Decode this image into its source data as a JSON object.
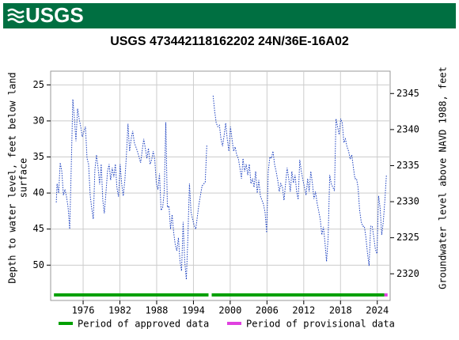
{
  "header": {
    "logo": "USGS"
  },
  "chart_data": {
    "type": "line",
    "title": "USGS 473442118162202 24N/36E-16A02",
    "ylabel": [
      "Depth to water level, feet below land",
      "surface"
    ],
    "y2label": "Groundwater level above NAVD 1988, feet",
    "xlim": [
      1970.7,
      2026.1
    ],
    "xticks": [
      1976,
      1982,
      1988,
      1994,
      2000,
      2006,
      2012,
      2018,
      2024
    ],
    "ylim": [
      23.1,
      54.9
    ],
    "yinverted": true,
    "yticks": [
      25,
      30,
      35,
      40,
      45,
      50
    ],
    "y2lim": [
      2348.1,
      2316.3
    ],
    "y2ticks": [
      2320,
      2325,
      2330,
      2335,
      2340,
      2345
    ],
    "grid": true,
    "x": [
      1971.62,
      1971.75,
      1972.01,
      1972.26,
      1972.52,
      1972.78,
      1973.03,
      1973.29,
      1973.55,
      1973.81,
      1974.06,
      1974.32,
      1974.58,
      1974.83,
      1975.09,
      1975.35,
      1975.61,
      1975.86,
      1976.12,
      1976.38,
      1976.64,
      1976.89,
      1977.15,
      1977.41,
      1977.66,
      1977.92,
      1978.18,
      1978.44,
      1978.69,
      1978.95,
      1979.21,
      1979.46,
      1979.72,
      1979.98,
      1980.24,
      1980.49,
      1980.75,
      1981.01,
      1981.26,
      1981.52,
      1981.78,
      1982.04,
      1982.29,
      1982.55,
      1982.81,
      1983.06,
      1983.32,
      1983.58,
      1983.84,
      1984.09,
      1984.35,
      1984.86,
      1985.38,
      1985.89,
      1986.15,
      1986.41,
      1986.66,
      1986.92,
      1987.18,
      1987.44,
      1987.69,
      1987.95,
      1988.21,
      1988.46,
      1988.72,
      1988.98,
      1989.24,
      1989.49,
      1989.75,
      1990.01,
      1990.26,
      1990.52,
      1990.78,
      1991.04,
      1991.29,
      1991.55,
      1991.81,
      1992.06,
      1992.32,
      1992.58,
      1992.84,
      1993.09,
      1993.35,
      1993.61,
      1993.86,
      1994.12,
      1994.38,
      1994.89,
      1995.41,
      1995.92,
      1996.18,
      1997.0,
      1997.21,
      1997.46,
      1997.72,
      1997.98,
      1998.24,
      1998.49,
      1998.75,
      1999.01,
      1999.26,
      1999.52,
      1999.78,
      2000.04,
      2000.29,
      2000.55,
      2000.81,
      2001.06,
      2001.32,
      2001.58,
      2001.84,
      2002.09,
      2002.35,
      2002.61,
      2002.86,
      2003.12,
      2003.38,
      2003.64,
      2003.89,
      2004.15,
      2004.41,
      2004.66,
      2004.92,
      2005.18,
      2005.44,
      2005.69,
      2005.95,
      2006.21,
      2006.46,
      2006.72,
      2006.98,
      2007.24,
      2007.49,
      2007.75,
      2008.01,
      2008.26,
      2008.52,
      2008.78,
      2009.04,
      2009.29,
      2009.55,
      2009.81,
      2010.06,
      2010.32,
      2010.58,
      2010.84,
      2011.09,
      2011.35,
      2011.61,
      2011.86,
      2012.12,
      2012.38,
      2012.64,
      2012.89,
      2013.15,
      2013.41,
      2013.66,
      2013.92,
      2014.18,
      2014.44,
      2014.69,
      2014.95,
      2015.21,
      2015.46,
      2015.72,
      2015.98,
      2016.24,
      2016.49,
      2016.75,
      2017.01,
      2017.26,
      2017.52,
      2017.78,
      2018.04,
      2018.29,
      2018.55,
      2018.81,
      2019.06,
      2019.32,
      2019.58,
      2019.84,
      2020.09,
      2020.35,
      2020.61,
      2020.86,
      2021.12,
      2021.38,
      2021.64,
      2021.89,
      2022.15,
      2022.41,
      2022.66,
      2022.92,
      2023.18,
      2023.44,
      2023.69,
      2023.95,
      2024.21,
      2024.46,
      2024.72,
      2024.98,
      2025.24,
      2025.49
    ],
    "series": [
      {
        "color": "#1a3fbf",
        "values": [
          41.3,
          38.7,
          40,
          35.8,
          37,
          40.3,
          39.5,
          40.5,
          42,
          45,
          36.5,
          27,
          29.7,
          32.8,
          28.3,
          29.7,
          30.8,
          32.2,
          31.5,
          30.8,
          35.2,
          36,
          40.3,
          42.2,
          43.6,
          36.8,
          34.7,
          36.5,
          38.8,
          36,
          41,
          42.8,
          40,
          37,
          36,
          38.2,
          36.5,
          37.8,
          36,
          39.3,
          40.5,
          36,
          38.7,
          40.4,
          38.2,
          34.8,
          30.4,
          34.2,
          32.5,
          31.4,
          33,
          34.2,
          35.8,
          32.5,
          33.8,
          35.2,
          33.8,
          36,
          35.4,
          34.2,
          35.4,
          38.7,
          39.5,
          37.3,
          42.4,
          42,
          39.8,
          30.2,
          42,
          41.8,
          45,
          43,
          45.5,
          47.2,
          48,
          46.2,
          49.5,
          50.8,
          44,
          49.5,
          52,
          46.2,
          38.7,
          42.7,
          43.6,
          44.5,
          45,
          41.6,
          39,
          38.5,
          33.4,
          null,
          26.5,
          28.6,
          30.3,
          30.8,
          30.6,
          32.5,
          33.5,
          32,
          30.3,
          32.5,
          34.2,
          30.8,
          32.5,
          34.2,
          33.6,
          34.7,
          35.2,
          36.5,
          38,
          35.2,
          37,
          36,
          37.5,
          36,
          38.7,
          38,
          39.2,
          37,
          40,
          38.2,
          40.4,
          41,
          41.6,
          42.7,
          45.5,
          37,
          35,
          35.2,
          34.2,
          36,
          37,
          38.2,
          39.8,
          38.7,
          39.2,
          41,
          38.7,
          36.5,
          38,
          39.8,
          37,
          38.6,
          37.5,
          39.8,
          40.9,
          35.4,
          37,
          38.2,
          39.2,
          40.3,
          38,
          39.8,
          37,
          38.6,
          40.8,
          39.8,
          41.4,
          42.5,
          43.6,
          45.8,
          44.7,
          46.8,
          49.5,
          46.2,
          37.5,
          38.7,
          39.2,
          39.7,
          29.7,
          30.8,
          31.9,
          29.7,
          30.3,
          33,
          32.5,
          33.6,
          34.2,
          35.3,
          34.7,
          36.4,
          38,
          38,
          39.2,
          42.4,
          44,
          44.6,
          44.6,
          46.2,
          48.4,
          50.1,
          44.6,
          44.6,
          46.2,
          47.8,
          48.4,
          40.4,
          42,
          45.8,
          44,
          41,
          37.5
        ]
      }
    ],
    "periods": [
      {
        "name": "Period of approved data",
        "color": "#00a000",
        "ranges": [
          [
            1971.24,
            1996.46
          ],
          [
            1996.98,
            2025.16
          ]
        ]
      },
      {
        "name": "Period of provisional data",
        "color": "#e040e0",
        "ranges": [
          [
            2025.16,
            2025.68
          ]
        ]
      }
    ]
  }
}
